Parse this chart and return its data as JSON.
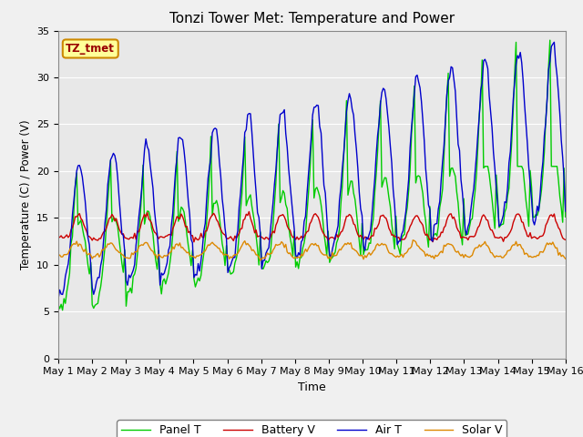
{
  "title": "Tonzi Tower Met: Temperature and Power",
  "xlabel": "Time",
  "ylabel": "Temperature (C) / Power (V)",
  "ylim": [
    0,
    35
  ],
  "yticks": [
    0,
    5,
    10,
    15,
    20,
    25,
    30,
    35
  ],
  "num_days": 15,
  "points_per_day": 24,
  "label_tag": "TZ_tmet",
  "colors": {
    "panel_t": "#00cc00",
    "battery_v": "#cc0000",
    "air_t": "#0000cc",
    "solar_v": "#dd8800"
  },
  "legend_labels": [
    "Panel T",
    "Battery V",
    "Air T",
    "Solar V"
  ],
  "background_color": "#e8e8e8",
  "fig_facecolor": "#f0f0f0"
}
